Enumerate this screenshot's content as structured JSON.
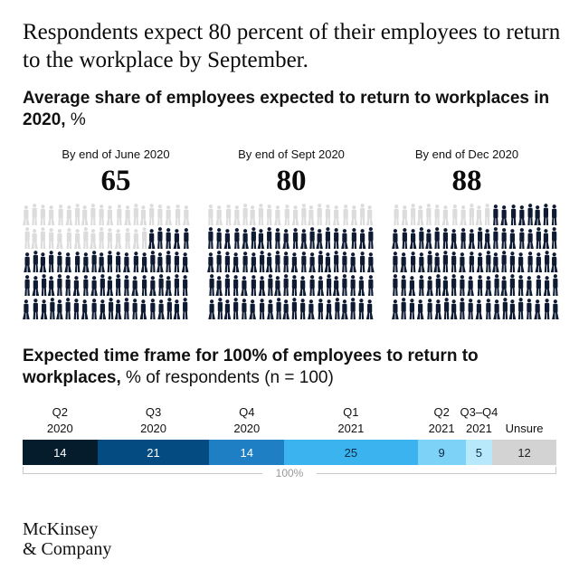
{
  "headline": "Respondents expect 80 percent of their employees to return to the workplace by September.",
  "subtitle": {
    "bold": "Average share of employees expected to return to workplaces in 2020,",
    "unit": " %"
  },
  "section2": {
    "bold": "Expected time frame for 100% of employees to return to workplaces,",
    "unit": " % of respondents (n = 100)"
  },
  "logo": {
    "line1": "McKinsey",
    "line2": "& Company"
  },
  "colors": {
    "figure_dark": "#0f1b33",
    "figure_light": "#dcdcdc",
    "seg": [
      "#051c2c",
      "#034b80",
      "#1f7fc4",
      "#3bb3ee",
      "#7dd3f7",
      "#b7e9fb",
      "#d3d3d3"
    ],
    "seg_text": [
      "#ffffff",
      "#ffffff",
      "#ffffff",
      "#0b2a45",
      "#0b2a45",
      "#0b2a45",
      "#222222"
    ]
  },
  "chart_data": [
    {
      "type": "pictogram",
      "title": "Average share of employees expected to return to workplaces in 2020, %",
      "categories": [
        "By end of June 2020",
        "By end of Sept 2020",
        "By end of Dec 2020"
      ],
      "values": [
        65,
        80,
        88
      ]
    },
    {
      "type": "bar",
      "orientation": "stacked-horizontal-100",
      "title": "Expected time frame for 100% of employees to return to workplaces, % of respondents (n = 100)",
      "categories": [
        {
          "line1": "Q2",
          "line2": "2020"
        },
        {
          "line1": "Q3",
          "line2": "2020"
        },
        {
          "line1": "Q4",
          "line2": "2020"
        },
        {
          "line1": "Q1",
          "line2": "2021"
        },
        {
          "line1": "Q2",
          "line2": "2021"
        },
        {
          "line1": "Q3–Q4",
          "line2": "2021"
        },
        {
          "line1": "",
          "line2": "Unsure"
        }
      ],
      "values": [
        14,
        21,
        14,
        25,
        9,
        5,
        12
      ],
      "total_label": "100%"
    }
  ]
}
